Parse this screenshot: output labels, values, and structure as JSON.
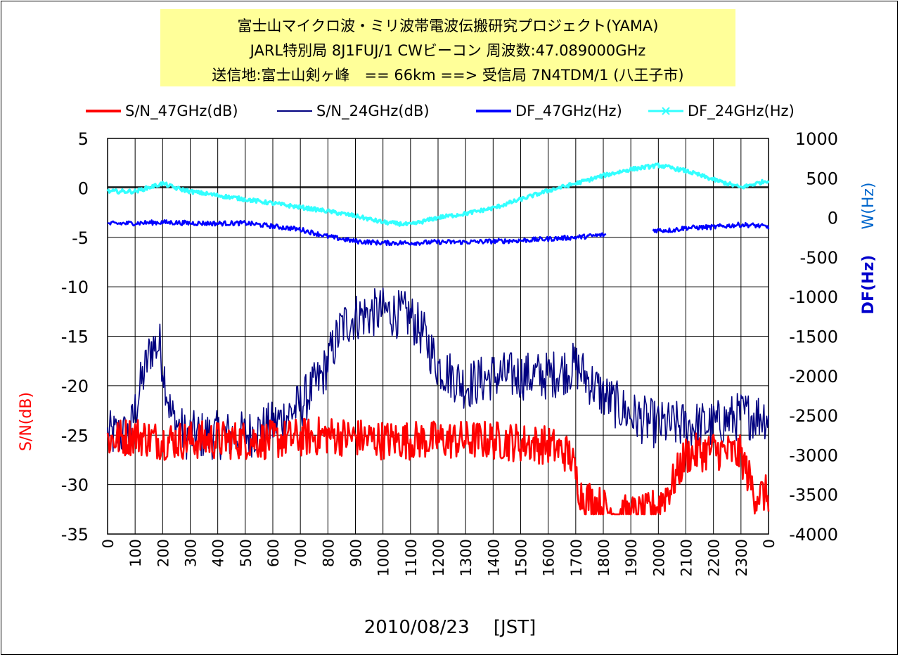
{
  "title": {
    "line1": "富士山マイクロ波・ミリ波帯電波伝搬研究プロジェクト(YAMA)",
    "line2": "JARL特別局 8J1FUJ/1 CWビーコン 周波数:47.089000GHz",
    "line3": "送信地:富士山剣ヶ峰　== 66km ==> 受信局 7N4TDM/1 (八王子市)"
  },
  "legend": [
    {
      "label": "S/N_47GHz(dB)",
      "color": "#ff0000",
      "style": "line-thick"
    },
    {
      "label": "S/N_24GHz(dB)",
      "color": "#000080",
      "style": "line-thin"
    },
    {
      "label": "DF_47GHz(Hz)",
      "color": "#0000ff",
      "style": "line-thick"
    },
    {
      "label": "DF_24GHz(Hz)",
      "color": "#33ffff",
      "style": "line-x-marker"
    }
  ],
  "axes": {
    "y_label": "S/N(dB)",
    "y2_label_top": "W(Hz)",
    "y2_label_bottom": "DF(Hz)",
    "x_label": "2010/08/23　 [JST]"
  },
  "chart_data": {
    "type": "line",
    "x_ticks": [
      "0",
      "100",
      "200",
      "300",
      "400",
      "500",
      "600",
      "700",
      "800",
      "900",
      "1000",
      "1100",
      "1200",
      "1300",
      "1400",
      "1500",
      "1600",
      "1700",
      "1800",
      "1900",
      "2000",
      "2100",
      "2200",
      "2300",
      "0"
    ],
    "xlim": [
      0,
      24
    ],
    "y_ticks": [
      5,
      0,
      -5,
      -10,
      -15,
      -20,
      -25,
      -30,
      -35
    ],
    "ylim": [
      -35,
      5
    ],
    "y2_ticks": [
      1000,
      500,
      0,
      -500,
      -1000,
      -1500,
      -2000,
      -2500,
      -3000,
      -3500,
      -4000
    ],
    "y2lim": [
      -4000,
      1000
    ],
    "grid": true,
    "series": [
      {
        "name": "S/N_47GHz(dB)",
        "axis": "left",
        "color": "#ff0000",
        "width": 2.6,
        "noise": 2.0,
        "points": [
          [
            0,
            -25.5
          ],
          [
            1,
            -25
          ],
          [
            1.8,
            -25.5
          ],
          [
            2.5,
            -25.5
          ],
          [
            4,
            -25.5
          ],
          [
            6,
            -25.5
          ],
          [
            8,
            -25
          ],
          [
            10,
            -25.5
          ],
          [
            12,
            -25.5
          ],
          [
            14,
            -25.5
          ],
          [
            16,
            -26
          ],
          [
            16.8,
            -27
          ],
          [
            17.2,
            -31
          ],
          [
            17.8,
            -32
          ],
          [
            18.5,
            -33
          ],
          [
            19.5,
            -33
          ],
          [
            20,
            -32
          ],
          [
            20.5,
            -30
          ],
          [
            21,
            -27
          ],
          [
            22,
            -26.5
          ],
          [
            23,
            -27
          ],
          [
            23.5,
            -31
          ],
          [
            24,
            -31
          ]
        ]
      },
      {
        "name": "S/N_24GHz(dB)",
        "axis": "left",
        "color": "#000080",
        "width": 1.6,
        "noise": 2.5,
        "points": [
          [
            0,
            -25
          ],
          [
            0.8,
            -25
          ],
          [
            1.2,
            -20
          ],
          [
            1.6,
            -16
          ],
          [
            1.9,
            -16
          ],
          [
            2.3,
            -23
          ],
          [
            2.8,
            -25
          ],
          [
            4,
            -25
          ],
          [
            5,
            -25
          ],
          [
            6,
            -24
          ],
          [
            7,
            -22
          ],
          [
            7.8,
            -19
          ],
          [
            8.5,
            -14
          ],
          [
            9,
            -13
          ],
          [
            10,
            -12.5
          ],
          [
            11,
            -13
          ],
          [
            11.5,
            -15
          ],
          [
            12,
            -18
          ],
          [
            13,
            -20
          ],
          [
            14,
            -19
          ],
          [
            15,
            -19
          ],
          [
            16,
            -19
          ],
          [
            17,
            -18
          ],
          [
            18,
            -21
          ],
          [
            19,
            -23
          ],
          [
            20,
            -24
          ],
          [
            21,
            -24
          ],
          [
            22,
            -24
          ],
          [
            23,
            -23
          ],
          [
            24,
            -23
          ]
        ]
      },
      {
        "name": "DF_47GHz(Hz)",
        "axis": "right",
        "color": "#0000ff",
        "width": 2.6,
        "noise": 30,
        "gap": [
          18.1,
          19.8
        ],
        "points": [
          [
            0,
            -80
          ],
          [
            1,
            -70
          ],
          [
            2,
            -60
          ],
          [
            3,
            -70
          ],
          [
            4,
            -75
          ],
          [
            5,
            -70
          ],
          [
            6,
            -110
          ],
          [
            7,
            -150
          ],
          [
            8,
            -240
          ],
          [
            9,
            -300
          ],
          [
            10,
            -320
          ],
          [
            11,
            -320
          ],
          [
            12,
            -310
          ],
          [
            13,
            -310
          ],
          [
            14,
            -300
          ],
          [
            15,
            -290
          ],
          [
            16,
            -270
          ],
          [
            17,
            -250
          ],
          [
            18,
            -220
          ],
          [
            19.8,
            -160
          ],
          [
            20.5,
            -160
          ],
          [
            21,
            -130
          ],
          [
            22,
            -120
          ],
          [
            23,
            -90
          ],
          [
            23.5,
            -100
          ],
          [
            24,
            -120
          ]
        ]
      },
      {
        "name": "DF_24GHz(Hz)",
        "axis": "right",
        "color": "#33ffff",
        "width": 3.4,
        "noise": 25,
        "points": [
          [
            0,
            330
          ],
          [
            1,
            330
          ],
          [
            1.5,
            380
          ],
          [
            2,
            430
          ],
          [
            2.5,
            370
          ],
          [
            3,
            330
          ],
          [
            4,
            280
          ],
          [
            5,
            230
          ],
          [
            6,
            180
          ],
          [
            7,
            130
          ],
          [
            8,
            80
          ],
          [
            9,
            20
          ],
          [
            10,
            -60
          ],
          [
            11,
            -90
          ],
          [
            12,
            0
          ],
          [
            13,
            50
          ],
          [
            14,
            120
          ],
          [
            15,
            230
          ],
          [
            16,
            340
          ],
          [
            17,
            430
          ],
          [
            18,
            530
          ],
          [
            19,
            610
          ],
          [
            20,
            660
          ],
          [
            21,
            590
          ],
          [
            22,
            480
          ],
          [
            23,
            380
          ],
          [
            24,
            470
          ]
        ]
      }
    ]
  }
}
